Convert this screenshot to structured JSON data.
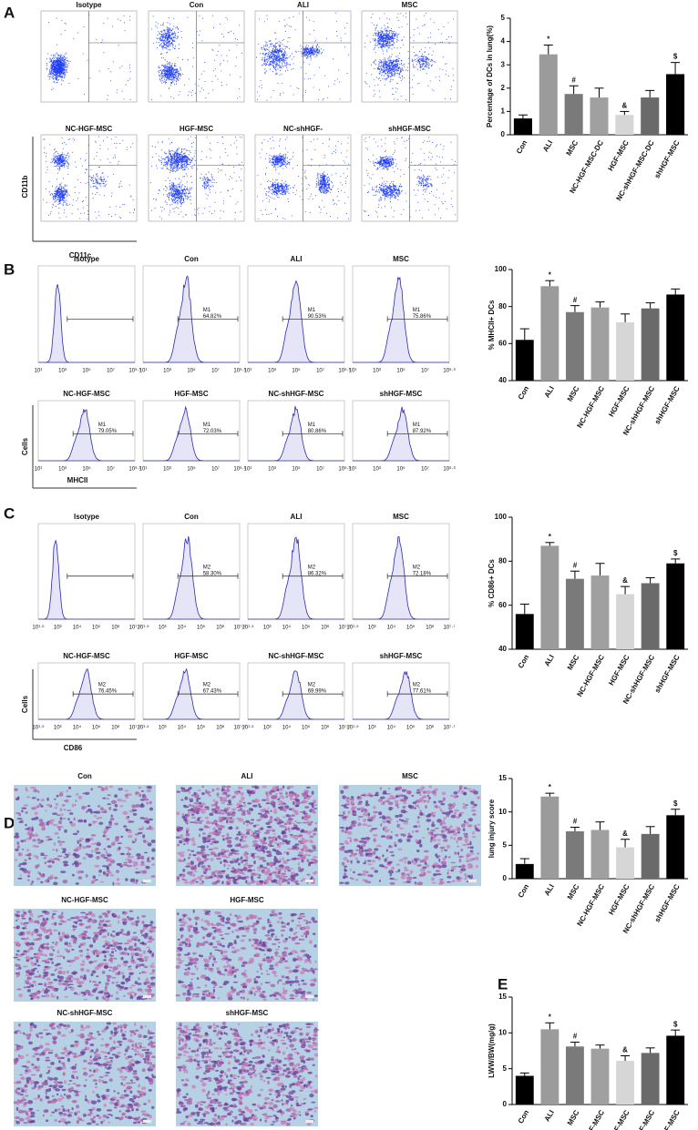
{
  "panel_labels": [
    "A",
    "B",
    "C",
    "D",
    "E"
  ],
  "flow_a": {
    "titles": [
      "Isotype",
      "Con",
      "ALI",
      "MSC",
      "NC-HGF-MSC",
      "HGF-MSC",
      "NC-shHGF-",
      "shHGF-MSC"
    ],
    "y_label": "CD11b",
    "x_label": "CD11c"
  },
  "flow_b": {
    "titles": [
      "Isotype",
      "Con",
      "ALI",
      "MSC",
      "NC-HGF-MSC",
      "HGF-MSC",
      "NC-shHGF-MSC",
      "shHGF-MSC"
    ],
    "gate": "M1",
    "percents": [
      null,
      "64.82%",
      "90.53%",
      "75.86%",
      "79.05%",
      "72.03%",
      "80.86%",
      "87.92%"
    ],
    "x_ticks": [
      "10¹",
      "10³",
      "10⁵",
      "10⁷",
      "10⁹·³"
    ],
    "x_label": "MHCII",
    "y_label": "Cells"
  },
  "flow_c": {
    "titles": [
      "Isotype",
      "Con",
      "ALI",
      "MSC",
      "NC-HGF-MSC",
      "HGF-MSC",
      "NC-shHGF-MSC",
      "shHGF-MSC"
    ],
    "gate": "M2",
    "percents": [
      null,
      "58.30%",
      "86.32%",
      "72.18%",
      "76.45%",
      "67.43%",
      "69.99%",
      "77.61%"
    ],
    "x_ticks": [
      "10¹·⁵",
      "10³",
      "10⁴",
      "10⁵",
      "10⁶",
      "10⁷·⁷"
    ],
    "x_label": "CD86",
    "y_label": "Cells"
  },
  "histology": {
    "titles": [
      "Con",
      "ALI",
      "MSC",
      "NC-HGF-MSC",
      "HGF-MSC",
      "NC-shHGF-MSC",
      "shHGF-MSC"
    ]
  },
  "chart_data": [
    {
      "type": "bar",
      "y_label": "Percentage of DCs in lung(%)",
      "categories": [
        "Con",
        "ALI",
        "MSC",
        "NC-HGF-MSC-DC",
        "HGF-MSC",
        "NC-shHGF-MSC-DC",
        "shHGF-MSC"
      ],
      "values": [
        0.7,
        3.45,
        1.75,
        1.6,
        0.85,
        1.6,
        2.6
      ],
      "errors": [
        0.15,
        0.4,
        0.35,
        0.4,
        0.15,
        0.3,
        0.5
      ],
      "annotations": [
        null,
        "*",
        "#",
        null,
        "&",
        null,
        "$"
      ],
      "colors": [
        "#000000",
        "#9b9b9b",
        "#7a7a7a",
        "#a0a0a0",
        "#d6d6d6",
        "#6a6a6a",
        "#000000"
      ],
      "ylim": [
        0,
        5
      ],
      "yticks": [
        0,
        1,
        2,
        3,
        4,
        5
      ]
    },
    {
      "type": "bar",
      "y_label": "% MHCII+  DCs",
      "categories": [
        "Con",
        "ALI",
        "MSC",
        "NC-HGF-MSC",
        "HGF-MSC",
        "NC-shHGF-MSC",
        "shHGF-MSC"
      ],
      "values": [
        62,
        91,
        77,
        79.5,
        71.5,
        79,
        86.5
      ],
      "errors": [
        6,
        3,
        3.5,
        3,
        4.5,
        3,
        3
      ],
      "annotations": [
        null,
        "*",
        "#",
        null,
        null,
        null,
        null
      ],
      "colors": [
        "#000000",
        "#9b9b9b",
        "#7a7a7a",
        "#a0a0a0",
        "#d6d6d6",
        "#6a6a6a",
        "#000000"
      ],
      "ylim": [
        40,
        100
      ],
      "yticks": [
        40,
        60,
        80,
        100
      ]
    },
    {
      "type": "bar",
      "y_label": "% CD86+  DCs",
      "categories": [
        "Con",
        "ALI",
        "MSC",
        "NC-HGF-MSC",
        "HGF-MSC",
        "NC-shHGF-MSC",
        "shHGF-MSC"
      ],
      "values": [
        56,
        87,
        72,
        73.5,
        65,
        70,
        79
      ],
      "errors": [
        4.5,
        1.5,
        3.5,
        5.5,
        3.5,
        2.5,
        2
      ],
      "annotations": [
        null,
        "*",
        "#",
        null,
        "&",
        null,
        "$"
      ],
      "colors": [
        "#000000",
        "#9b9b9b",
        "#7a7a7a",
        "#a0a0a0",
        "#d6d6d6",
        "#6a6a6a",
        "#000000"
      ],
      "ylim": [
        40,
        100
      ],
      "yticks": [
        40,
        60,
        80,
        100
      ]
    },
    {
      "type": "bar",
      "y_label": "lung injury score",
      "categories": [
        "Con",
        "ALI",
        "MSC",
        "NC-HGF-MSC",
        "HGF-MSC",
        "NC-shHGF-MSC",
        "shHGF-MSC"
      ],
      "values": [
        2.2,
        12.3,
        7.1,
        7.3,
        4.7,
        6.7,
        9.5
      ],
      "errors": [
        0.8,
        0.5,
        0.6,
        1.2,
        1.2,
        1.1,
        0.9
      ],
      "annotations": [
        null,
        "*",
        "#",
        null,
        "&",
        null,
        "$"
      ],
      "colors": [
        "#000000",
        "#9b9b9b",
        "#7a7a7a",
        "#a0a0a0",
        "#d6d6d6",
        "#6a6a6a",
        "#000000"
      ],
      "ylim": [
        0,
        15
      ],
      "yticks": [
        0,
        5,
        10,
        15
      ]
    },
    {
      "type": "bar",
      "y_label": "LWW/BW(mg/g)",
      "categories": [
        "Con",
        "ALI",
        "MSC",
        "NC-HGF-MSC",
        "HGF-MSC",
        "NC-shHGF-MSC",
        "shHGF-MSC"
      ],
      "values": [
        4,
        10.5,
        8.1,
        7.8,
        6.1,
        7.2,
        9.6
      ],
      "errors": [
        0.4,
        0.9,
        0.6,
        0.5,
        0.7,
        0.7,
        0.8
      ],
      "annotations": [
        null,
        "*",
        "#",
        null,
        "&",
        null,
        "$"
      ],
      "colors": [
        "#000000",
        "#9b9b9b",
        "#7a7a7a",
        "#a0a0a0",
        "#d6d6d6",
        "#6a6a6a",
        "#000000"
      ],
      "ylim": [
        0,
        15
      ],
      "yticks": [
        0,
        5,
        10,
        15
      ]
    }
  ]
}
